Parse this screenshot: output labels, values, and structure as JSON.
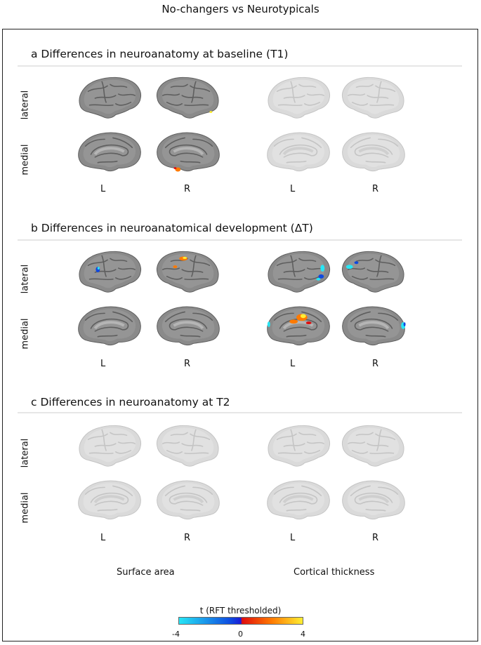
{
  "figure_title": "No-changers vs Neurotypicals",
  "sections": [
    {
      "id": "a",
      "title": "a Differences in neuroanatomy at baseline (T1)"
    },
    {
      "id": "b",
      "title": "b Differences in neuroanatomical development (ΔT)"
    },
    {
      "id": "c",
      "title": "c Differences in neuroanatomy at T2"
    }
  ],
  "row_labels": {
    "lateral": "lateral",
    "medial": "medial"
  },
  "hemisphere_labels": {
    "left": "L",
    "right": "R"
  },
  "column_labels": {
    "surface_area": "Surface area",
    "cortical_thickness": "Cortical thickness"
  },
  "colorbar": {
    "title": "t (RFT thresholded)",
    "ticks": [
      "-4",
      "0",
      "4"
    ],
    "colors": {
      "neg_low": "#27e6f5",
      "neg_high": "#0e49e0",
      "pos_low": "#e00d0d",
      "pos_mid": "#ff7a00",
      "pos_high": "#ffee33"
    }
  },
  "colors": {
    "brain_dark": "#8a8a8a",
    "brain_faded": "#dadada",
    "gyri_dark": "#5e5e5e",
    "gyri_faded": "#c4c4c4"
  }
}
